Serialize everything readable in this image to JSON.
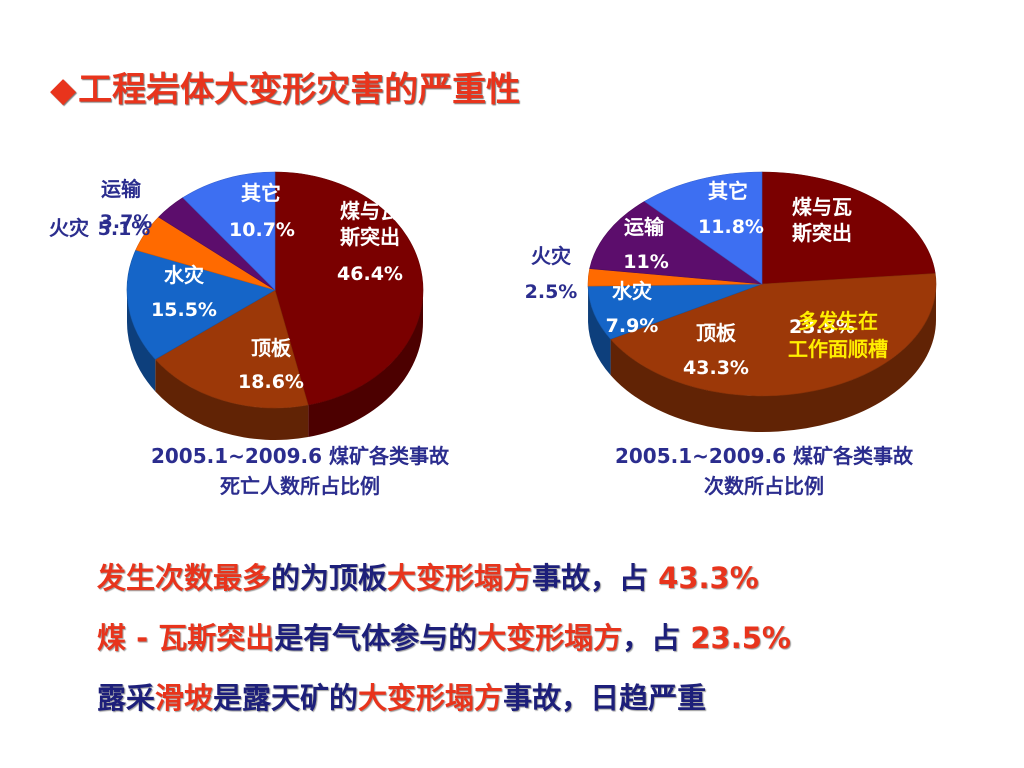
{
  "page": {
    "title_bullet": "◆",
    "title": "工程岩体大变形灾害的严重性"
  },
  "chart_data": [
    {
      "type": "pie",
      "caption_line1": "2005.1~2009.6 煤矿各类事故",
      "caption_line2": "死亡人数所占比例",
      "slices": [
        {
          "name": "煤与瓦斯突出",
          "label_lines": [
            "煤与瓦",
            "斯突出"
          ],
          "value": 46.4,
          "pct_label": "46.4%",
          "color": "#7a0000"
        },
        {
          "name": "顶板",
          "label_lines": [
            "顶板"
          ],
          "value": 18.6,
          "pct_label": "18.6%",
          "color": "#9c3808"
        },
        {
          "name": "水灾",
          "label_lines": [
            "水灾"
          ],
          "value": 15.5,
          "pct_label": "15.5%",
          "color": "#1565c8"
        },
        {
          "name": "火灾",
          "label_lines": [
            "火灾"
          ],
          "value": 5.1,
          "pct_label": "5.1%",
          "color": "#ff6a00"
        },
        {
          "name": "运输",
          "label_lines": [
            "运输"
          ],
          "value": 3.7,
          "pct_label": "3.7%",
          "color": "#5c0d6c"
        },
        {
          "name": "其它",
          "label_lines": [
            "其它"
          ],
          "value": 10.7,
          "pct_label": "10.7%",
          "color": "#3d6ff2"
        }
      ]
    },
    {
      "type": "pie",
      "caption_line1": "2005.1~2009.6 煤矿各类事故",
      "caption_line2": "次数所占比例",
      "annotation_lines": [
        "多发生在",
        "工作面顺槽"
      ],
      "slices": [
        {
          "name": "煤与瓦斯突出",
          "label_lines": [
            "煤与瓦",
            "斯突出"
          ],
          "value": 23.5,
          "pct_label": "23.5%",
          "color": "#7a0000"
        },
        {
          "name": "顶板",
          "label_lines": [
            "顶板"
          ],
          "value": 43.3,
          "pct_label": "43.3%",
          "color": "#9c3808"
        },
        {
          "name": "水灾",
          "label_lines": [
            "水灾"
          ],
          "value": 7.9,
          "pct_label": "7.9%",
          "color": "#1565c8"
        },
        {
          "name": "火灾",
          "label_lines": [
            "火灾"
          ],
          "value": 2.5,
          "pct_label": "2.5%",
          "color": "#ff6a00"
        },
        {
          "name": "运输",
          "label_lines": [
            "运输"
          ],
          "value": 11,
          "pct_label": "11%",
          "color": "#5c0d6c"
        },
        {
          "name": "其它",
          "label_lines": [
            "其它"
          ],
          "value": 11.8,
          "pct_label": "11.8%",
          "color": "#3d6ff2"
        }
      ]
    }
  ],
  "bullets": [
    {
      "marker": "",
      "parts": [
        {
          "text": "发生次数最多",
          "color": "red"
        },
        {
          "text": "的为顶板",
          "color": "blue"
        },
        {
          "text": "大变形塌方",
          "color": "red"
        },
        {
          "text": "事故，占 ",
          "color": "blue"
        },
        {
          "text": "43.3%",
          "color": "red"
        }
      ]
    },
    {
      "marker": "",
      "parts": [
        {
          "text": "煤 - 瓦斯突出",
          "color": "red"
        },
        {
          "text": "是有气体参与的",
          "color": "blue"
        },
        {
          "text": "大变形塌方",
          "color": "red"
        },
        {
          "text": "，占 ",
          "color": "blue"
        },
        {
          "text": "23.5%",
          "color": "red"
        }
      ]
    },
    {
      "marker": "",
      "parts": [
        {
          "text": "露采",
          "color": "blue"
        },
        {
          "text": "滑坡",
          "color": "red"
        },
        {
          "text": "是露天矿的",
          "color": "blue"
        },
        {
          "text": "大变形塌方",
          "color": "red"
        },
        {
          "text": "事故，日趋严重",
          "color": "blue"
        }
      ]
    }
  ]
}
